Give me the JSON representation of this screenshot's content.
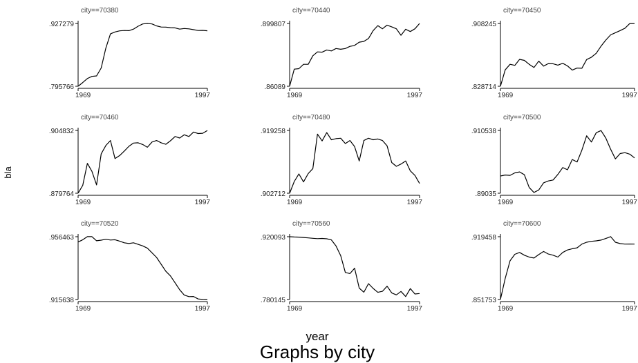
{
  "chart_data": {
    "type": "line",
    "layout": "3x3 small multiples, one panel per city",
    "xlabel": "year",
    "ylabel": "bla",
    "note": "Graphs by city",
    "x_tick_labels": [
      "1969",
      "1997"
    ],
    "xlim": [
      1969,
      1997
    ],
    "x": [
      1969,
      1970,
      1971,
      1972,
      1973,
      1974,
      1975,
      1976,
      1977,
      1978,
      1979,
      1980,
      1981,
      1982,
      1983,
      1984,
      1985,
      1986,
      1987,
      1988,
      1989,
      1990,
      1991,
      1992,
      1993,
      1994,
      1995,
      1996,
      1997
    ],
    "panels": [
      {
        "title": "city==70380",
        "y_tick_labels": [
          ".795766",
          ".927279"
        ],
        "ylim": [
          0.795766,
          0.927279
        ],
        "values": [
          0.7958,
          0.8035,
          0.812,
          0.8165,
          0.8175,
          0.834,
          0.8755,
          0.9055,
          0.9095,
          0.9118,
          0.9125,
          0.9122,
          0.9155,
          0.9215,
          0.9262,
          0.9273,
          0.9262,
          0.9222,
          0.9198,
          0.9196,
          0.9185,
          0.918,
          0.9155,
          0.9168,
          0.916,
          0.9142,
          0.9125,
          0.9128,
          0.912
        ]
      },
      {
        "title": "city==70440",
        "y_tick_labels": [
          ".86089",
          ".899807"
        ],
        "ylim": [
          0.86089,
          0.899807
        ],
        "values": [
          0.8609,
          0.8715,
          0.8718,
          0.8745,
          0.8745,
          0.8798,
          0.8822,
          0.882,
          0.8834,
          0.8828,
          0.8843,
          0.8838,
          0.8843,
          0.8856,
          0.8862,
          0.8882,
          0.8887,
          0.8905,
          0.8954,
          0.8985,
          0.8965,
          0.8988,
          0.8977,
          0.8965,
          0.8925,
          0.8962,
          0.8948,
          0.8965,
          0.8998
        ]
      },
      {
        "title": "city==70450",
        "y_tick_labels": [
          ".828714",
          ".908245"
        ],
        "ylim": [
          0.828714,
          0.908245
        ],
        "values": [
          0.8287,
          0.8495,
          0.8565,
          0.8552,
          0.8628,
          0.8615,
          0.8565,
          0.8525,
          0.8605,
          0.8542,
          0.8575,
          0.8572,
          0.8555,
          0.8578,
          0.8545,
          0.8492,
          0.8518,
          0.8515,
          0.8625,
          0.8655,
          0.8705,
          0.8795,
          0.8872,
          0.8938,
          0.8965,
          0.8992,
          0.9022,
          0.9082,
          0.9082
        ]
      },
      {
        "title": "city==70460",
        "y_tick_labels": [
          ".879764",
          ".904832"
        ],
        "ylim": [
          0.879764,
          0.904832
        ],
        "values": [
          0.8798,
          0.8829,
          0.8917,
          0.8885,
          0.8831,
          0.8955,
          0.8988,
          0.9008,
          0.8936,
          0.8948,
          0.8966,
          0.8985,
          0.8998,
          0.8999,
          0.8992,
          0.8981,
          0.9002,
          0.9008,
          0.8999,
          0.8993,
          0.9007,
          0.9024,
          0.9018,
          0.9031,
          0.9024,
          0.9042,
          0.9036,
          0.9037,
          0.9048
        ]
      },
      {
        "title": "city==70480",
        "y_tick_labels": [
          ".902712",
          ".919258"
        ],
        "ylim": [
          0.902712,
          0.919258
        ],
        "values": [
          0.9027,
          0.9058,
          0.9078,
          0.9057,
          0.9079,
          0.9092,
          0.9183,
          0.9165,
          0.9187,
          0.9168,
          0.9171,
          0.9172,
          0.9158,
          0.9166,
          0.915,
          0.9112,
          0.9166,
          0.9172,
          0.9168,
          0.917,
          0.9166,
          0.9152,
          0.9108,
          0.9098,
          0.9104,
          0.9112,
          0.9086,
          0.9074,
          0.9053
        ]
      },
      {
        "title": "city==70500",
        "y_tick_labels": [
          ".89035",
          ".910538"
        ],
        "ylim": [
          0.89035,
          0.910538
        ],
        "values": [
          0.8959,
          0.8962,
          0.8961,
          0.8969,
          0.8972,
          0.8963,
          0.8922,
          0.8906,
          0.8914,
          0.8937,
          0.8943,
          0.8946,
          0.8964,
          0.8986,
          0.8979,
          0.9012,
          0.9004,
          0.9042,
          0.9088,
          0.9068,
          0.9098,
          0.9105,
          0.9081,
          0.9045,
          0.9014,
          0.9031,
          0.9034,
          0.9029,
          0.9017
        ]
      },
      {
        "title": "city==70520",
        "y_tick_labels": [
          ".915638",
          ".956463"
        ],
        "ylim": [
          0.915638,
          0.956463
        ],
        "values": [
          0.953,
          0.9545,
          0.9565,
          0.9565,
          0.9538,
          0.9542,
          0.9548,
          0.9543,
          0.9545,
          0.9536,
          0.9525,
          0.952,
          0.9525,
          0.9515,
          0.9505,
          0.949,
          0.946,
          0.943,
          0.9385,
          0.934,
          0.931,
          0.9265,
          0.922,
          0.9185,
          0.9175,
          0.9176,
          0.916,
          0.9157,
          0.9156
        ]
      },
      {
        "title": "city==70560",
        "y_tick_labels": [
          ".780145",
          ".920093"
        ],
        "ylim": [
          0.780145,
          0.920093
        ],
        "values": [
          0.9201,
          0.9195,
          0.9191,
          0.9184,
          0.9175,
          0.9165,
          0.9158,
          0.9163,
          0.9155,
          0.913,
          0.8995,
          0.8778,
          0.8405,
          0.838,
          0.85,
          0.8055,
          0.7965,
          0.8155,
          0.8048,
          0.7962,
          0.7985,
          0.8098,
          0.7949,
          0.7905,
          0.7981,
          0.7868,
          0.8045,
          0.7925,
          0.7935
        ]
      },
      {
        "title": "city==70600",
        "y_tick_labels": [
          ".851753",
          ".919458"
        ],
        "ylim": [
          0.851753,
          0.919458
        ],
        "values": [
          0.8518,
          0.8745,
          0.8935,
          0.9005,
          0.9025,
          0.8995,
          0.8975,
          0.8965,
          0.9002,
          0.9035,
          0.9008,
          0.8995,
          0.8975,
          0.9025,
          0.9052,
          0.9065,
          0.9075,
          0.9115,
          0.9135,
          0.9145,
          0.915,
          0.9158,
          0.9175,
          0.9195,
          0.9135,
          0.912,
          0.9115,
          0.9116,
          0.9115
        ]
      }
    ]
  }
}
